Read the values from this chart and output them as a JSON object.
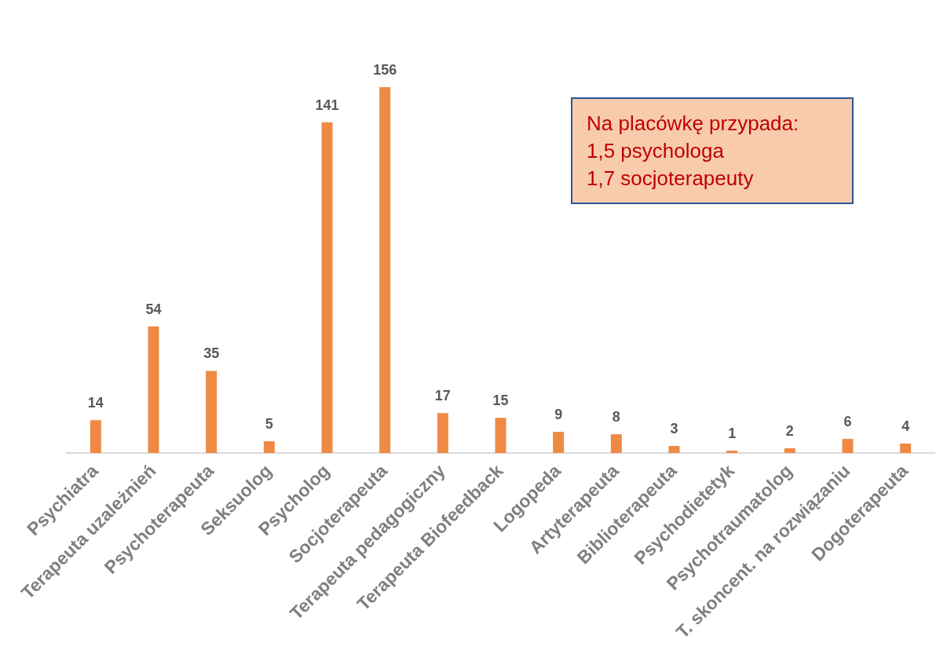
{
  "chart_data": {
    "type": "bar",
    "categories": [
      "Psychiatra",
      "Terapeuta uzależnień",
      "Psychoterapeuta",
      "Seksuolog",
      "Psycholog",
      "Socjoterapeuta",
      "Terapeuta pedagogiczny",
      "Terapeuta Biofeedback",
      "Logopeda",
      "Artyterapeuta",
      "Biblioterapeuta",
      "Psychodietetyk",
      "Psychotraumatolog",
      "T. skoncent. na rozwiązaniu",
      "Dogoterapeuta"
    ],
    "values": [
      14,
      54,
      35,
      5,
      141,
      156,
      17,
      15,
      9,
      8,
      3,
      1,
      2,
      6,
      4
    ],
    "color": "#ef8a45",
    "data_labels": true,
    "tick_labels": "x",
    "annotations": [
      "Na placówkę przypada:",
      "1,5 psychologa",
      "1,7 socjoterapeuty"
    ]
  }
}
